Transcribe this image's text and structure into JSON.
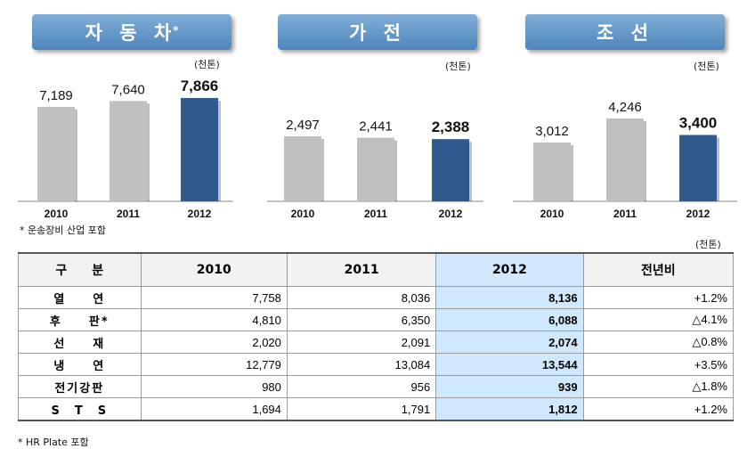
{
  "unit_label": "(천톤)",
  "charts": [
    {
      "title": "자 동 차",
      "title_mark": "*",
      "unit": "(천톤)",
      "categories": [
        "2010",
        "2011",
        "2012"
      ],
      "values": [
        7189,
        7640,
        7866
      ],
      "labels": [
        "7,189",
        "7,640",
        "7,866"
      ]
    },
    {
      "title": "가 전",
      "title_mark": "",
      "unit": "(천톤)",
      "categories": [
        "2010",
        "2011",
        "2012"
      ],
      "values": [
        2497,
        2441,
        2388
      ],
      "labels": [
        "2,497",
        "2,441",
        "2,388"
      ]
    },
    {
      "title": "조 선",
      "title_mark": "",
      "unit": "(천톤)",
      "categories": [
        "2010",
        "2011",
        "2012"
      ],
      "values": [
        3012,
        4246,
        3400
      ],
      "labels": [
        "3,012",
        "4,246",
        "3,400"
      ]
    }
  ],
  "chart_note": "* 운송장비 산업 포함",
  "table": {
    "unit": "(천톤)",
    "headers": [
      "구　　분",
      "2010",
      "2011",
      "2012",
      "전년비"
    ],
    "rows": [
      {
        "label": "열　　연",
        "v2010": "7,758",
        "v2011": "8,036",
        "v2012": "8,136",
        "change": "+1.2%"
      },
      {
        "label": "후　　판*",
        "v2010": "4,810",
        "v2011": "6,350",
        "v2012": "6,088",
        "change": "△4.1%"
      },
      {
        "label": "선　　재",
        "v2010": "2,020",
        "v2011": "2,091",
        "v2012": "2,074",
        "change": "△0.8%"
      },
      {
        "label": "냉　　연",
        "v2010": "12,779",
        "v2011": "13,084",
        "v2012": "13,544",
        "change": "+3.5%"
      },
      {
        "label": "전기강판",
        "v2010": "980",
        "v2011": "956",
        "v2012": "939",
        "change": "△1.8%"
      },
      {
        "label": "S　T　S",
        "v2010": "1,694",
        "v2011": "1,791",
        "v2012": "1,812",
        "change": "+1.2%"
      }
    ],
    "note": "* HR Plate 포함"
  },
  "colors": {
    "bar_gray": "#c0c0c0",
    "bar_blue": "#2e5b8c",
    "banner": "#6a9ccc",
    "highlight": "#cfe8fb"
  },
  "chart_data": [
    {
      "type": "bar",
      "title": "자동차*",
      "categories": [
        "2010",
        "2011",
        "2012"
      ],
      "values": [
        7189,
        7640,
        7866
      ]
    },
    {
      "type": "bar",
      "title": "가전",
      "categories": [
        "2010",
        "2011",
        "2012"
      ],
      "values": [
        2497,
        2441,
        2388
      ]
    },
    {
      "type": "bar",
      "title": "조선",
      "categories": [
        "2010",
        "2011",
        "2012"
      ],
      "values": [
        3012,
        4246,
        3400
      ]
    }
  ]
}
